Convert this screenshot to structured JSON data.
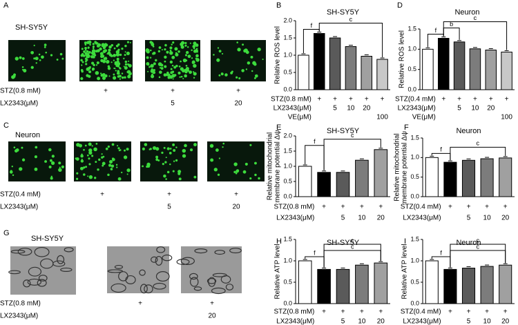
{
  "panels": [
    {
      "letter": "A",
      "title": "SH-SY5Y",
      "rows": [
        {
          "label": "STZ(0.8 mM)",
          "marks": [
            null,
            "+",
            "+",
            "+"
          ]
        },
        {
          "label": "LX2343(μM)",
          "marks": [
            null,
            null,
            "5",
            "20"
          ]
        }
      ]
    },
    {
      "letter": "C",
      "title": "Neuron",
      "rows": [
        {
          "label": "STZ(0.4 mM)",
          "marks": [
            null,
            "+",
            "+",
            "+"
          ]
        },
        {
          "label": "LX2343(μM)",
          "marks": [
            null,
            null,
            "5",
            "20"
          ]
        }
      ]
    },
    {
      "letter": "G",
      "title": "SH-SY5Y",
      "rows": [
        {
          "label": "STZ(0.8 mM)",
          "marks": [
            null,
            "+",
            "+"
          ]
        },
        {
          "label": "LX2343(μM)",
          "marks": [
            null,
            null,
            "20"
          ]
        }
      ]
    }
  ],
  "chart_data": [
    {
      "type": "bar",
      "panel": "B",
      "title": "SH-SY5Y",
      "ylabel": [
        "Relative ROS level"
      ],
      "values": [
        1.0,
        1.63,
        1.5,
        1.25,
        0.97,
        0.88
      ],
      "colors": [
        "#ffffff",
        "#000000",
        "#5a5a5a",
        "#7c7c7c",
        "#a0a0a0",
        "#c8c8c8"
      ],
      "ylim": [
        0,
        2
      ],
      "yticks": [
        {
          "value": 0,
          "label": "0.0"
        },
        0.5,
        {
          "value": 1,
          "label": "1.0"
        },
        1.5,
        {
          "value": 2,
          "label": "2.0"
        }
      ],
      "annotations": [
        "f",
        "c"
      ],
      "conditions": [
        {
          "label": "STZ(0.8 mM)",
          "marks": [
            null,
            "+",
            "+",
            "+",
            "+",
            "+"
          ]
        },
        {
          "label": "LX2343(μM)",
          "marks": [
            null,
            null,
            "5",
            "10",
            "20",
            null
          ]
        },
        {
          "label": "VE(μM)",
          "marks": [
            null,
            null,
            null,
            null,
            null,
            "100"
          ]
        }
      ]
    },
    {
      "type": "bar",
      "panel": "D",
      "title": "Neuron",
      "ylabel": [
        "Relative ROS level"
      ],
      "values": [
        1.0,
        1.27,
        1.18,
        1.01,
        0.98,
        0.93
      ],
      "colors": [
        "#ffffff",
        "#000000",
        "#5a5a5a",
        "#7c7c7c",
        "#a0a0a0",
        "#c8c8c8"
      ],
      "ylim": [
        0,
        1.5
      ],
      "yticks": [
        {
          "value": 0,
          "label": "0.0"
        },
        0.5,
        {
          "value": 1,
          "label": "1.0"
        },
        1.5
      ],
      "annotations": [
        "f",
        "b",
        "c"
      ],
      "conditions": [
        {
          "label": "STZ(0.4 mM)",
          "marks": [
            null,
            "+",
            "+",
            "+",
            "+",
            "+"
          ]
        },
        {
          "label": "LX2343(μM)",
          "marks": [
            null,
            null,
            "5",
            "10",
            "20",
            null
          ]
        },
        {
          "label": "VE(μM)",
          "marks": [
            null,
            null,
            null,
            null,
            null,
            "100"
          ]
        }
      ]
    },
    {
      "type": "bar",
      "panel": "E",
      "title": "SH-SY5Y",
      "ylabel": [
        "Relative mitochondrial",
        "membrane potential Δψ"
      ],
      "values": [
        1.0,
        0.8,
        0.8,
        1.2,
        1.55
      ],
      "colors": [
        "#ffffff",
        "#000000",
        "#5a5a5a",
        "#7c7c7c",
        "#a0a0a0"
      ],
      "ylim": [
        0,
        2
      ],
      "yticks": [
        {
          "value": 0,
          "label": "0.0"
        },
        0.5,
        {
          "value": 1,
          "label": "1.0"
        },
        1.5,
        {
          "value": 2,
          "label": "2.0"
        }
      ],
      "annotations": [
        "f",
        "c"
      ],
      "conditions": [
        {
          "label": "STZ(0.8 mM)",
          "marks": [
            null,
            "+",
            "+",
            "+",
            "+"
          ]
        },
        {
          "label": "LX2343(μM)",
          "marks": [
            null,
            null,
            "5",
            "10",
            "20"
          ]
        }
      ]
    },
    {
      "type": "bar",
      "panel": "F",
      "title": "Neuron",
      "ylabel": [
        "Relative mitochondrial",
        "membrane potential Δψ"
      ],
      "values": [
        1.0,
        0.88,
        0.93,
        0.97,
        0.99
      ],
      "colors": [
        "#ffffff",
        "#000000",
        "#5a5a5a",
        "#7c7c7c",
        "#a0a0a0"
      ],
      "ylim": [
        0,
        1.5
      ],
      "yticks": [
        {
          "value": 0,
          "label": "0.0"
        },
        0.5,
        {
          "value": 1,
          "label": "1.0"
        },
        1.5
      ],
      "annotations": [
        "f",
        "c"
      ],
      "conditions": [
        {
          "label": "STZ(0.4 mM)",
          "marks": [
            null,
            "+",
            "+",
            "+",
            "+"
          ]
        },
        {
          "label": "LX2343(μM)",
          "marks": [
            null,
            null,
            "5",
            "10",
            "20"
          ]
        }
      ]
    },
    {
      "type": "bar",
      "panel": "H",
      "title": "SH-SY5Y",
      "ylabel": [
        "Relative ATP level"
      ],
      "values": [
        1.0,
        0.8,
        0.8,
        0.9,
        0.95
      ],
      "colors": [
        "#ffffff",
        "#000000",
        "#5a5a5a",
        "#7c7c7c",
        "#a0a0a0"
      ],
      "ylim": [
        0,
        1.5
      ],
      "yticks": [
        {
          "value": 0,
          "label": "0.0"
        },
        0.5,
        {
          "value": 1,
          "label": "1.0"
        },
        1.5
      ],
      "annotations": [
        "f",
        "c",
        "c"
      ],
      "conditions": [
        {
          "label": "STZ(0.8 mM)",
          "marks": [
            null,
            "+",
            "+",
            "+",
            "+"
          ]
        },
        {
          "label": "LX2343(μM)",
          "marks": [
            null,
            null,
            "5",
            "10",
            "20"
          ]
        }
      ]
    },
    {
      "type": "bar",
      "panel": "I",
      "title": "Neuron",
      "ylabel": [
        "Relative ATP level"
      ],
      "values": [
        1.0,
        0.8,
        0.83,
        0.87,
        0.9
      ],
      "colors": [
        "#ffffff",
        "#000000",
        "#5a5a5a",
        "#7c7c7c",
        "#a0a0a0"
      ],
      "ylim": [
        0,
        1.5
      ],
      "yticks": [
        {
          "value": 0,
          "label": "0.0"
        },
        0.5,
        {
          "value": 1,
          "label": "1.0"
        },
        1.5
      ],
      "annotations": [
        "f",
        "c",
        "c"
      ],
      "conditions": [
        {
          "label": "STZ(0.4 mM)",
          "marks": [
            null,
            "+",
            "+",
            "+",
            "+"
          ]
        },
        {
          "label": "LX2343(μM)",
          "marks": [
            null,
            null,
            "5",
            "10",
            "20"
          ]
        }
      ]
    }
  ]
}
